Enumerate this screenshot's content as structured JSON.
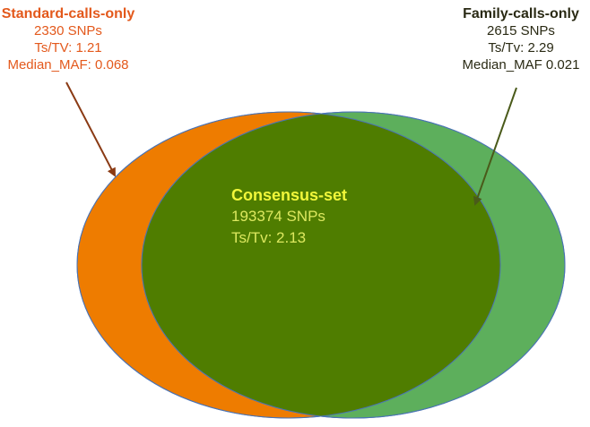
{
  "standard_calls_only": {
    "title": "Standard-calls-only",
    "snps": "2330 SNPs",
    "tstv": "Ts/TV: 1.21",
    "maf": "Median_MAF: 0.068"
  },
  "family_calls_only": {
    "title": "Family-calls-only",
    "snps": "2615 SNPs",
    "tstv": "Ts/Tv: 2.29",
    "maf": "Median_MAF 0.021"
  },
  "consensus_set": {
    "title": "Consensus-set",
    "snps": "193374 SNPs",
    "tstv": "Ts/Tv: 2.13"
  },
  "colors": {
    "standard_fill": "#ee7c00",
    "family_fill": "#5daf5c",
    "consensus_fill": "#4f7d00",
    "standard_text": "#e3591c",
    "family_text": "#2a2a14",
    "consensus_title": "#f1f73a",
    "consensus_text": "#dde85f"
  }
}
